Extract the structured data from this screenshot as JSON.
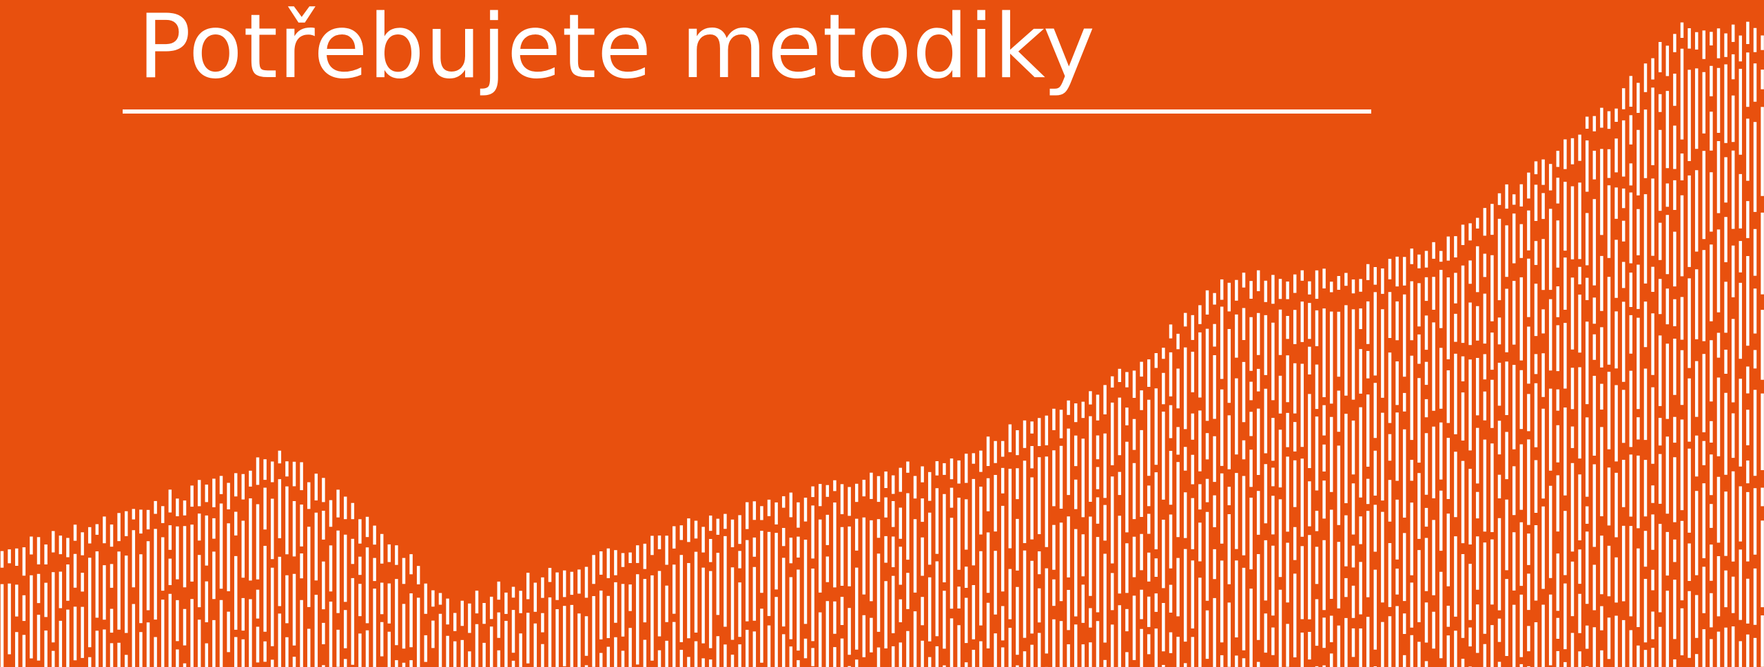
{
  "header": {
    "title": "Potřebujete metodiky"
  }
}
